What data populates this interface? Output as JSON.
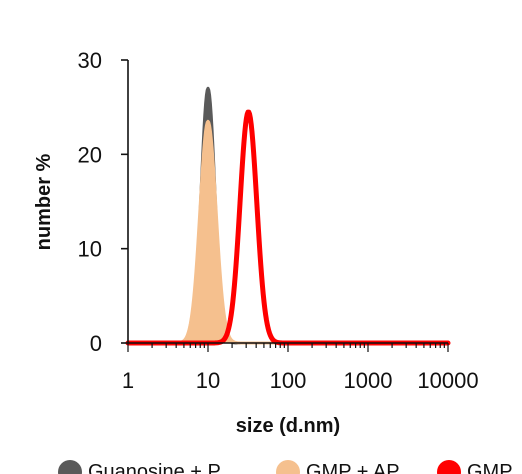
{
  "chart_data": {
    "type": "area",
    "xscale": "log",
    "xlim": [
      1,
      10000
    ],
    "ylim": [
      0,
      30
    ],
    "xticks": [
      {
        "value": 1,
        "label": "1"
      },
      {
        "value": 10,
        "label": "10"
      },
      {
        "value": 100,
        "label": "100"
      },
      {
        "value": 1000,
        "label": "1000"
      },
      {
        "value": 10000,
        "label": "10000"
      }
    ],
    "yticks": [
      {
        "value": 0,
        "label": "0"
      },
      {
        "value": 10,
        "label": "10"
      },
      {
        "value": 20,
        "label": "20"
      },
      {
        "value": 30,
        "label": "30"
      }
    ],
    "xlabel": "size (d.nm)",
    "ylabel": "number %",
    "grid": false,
    "legend_position": "bottom",
    "series": [
      {
        "name": "Guanosine + P",
        "color": "#5a5a5a",
        "peak_x": 10,
        "peak_y": 27,
        "spread_log10": 0.085
      },
      {
        "name": "GMP + AP",
        "color": "#f5c08e",
        "peak_x": 10,
        "peak_y": 23.5,
        "spread_log10": 0.1
      },
      {
        "name": "GMP",
        "color": "#ff0000",
        "peak_x": 32,
        "peak_y": 24.5,
        "spread_log10": 0.105
      }
    ]
  }
}
